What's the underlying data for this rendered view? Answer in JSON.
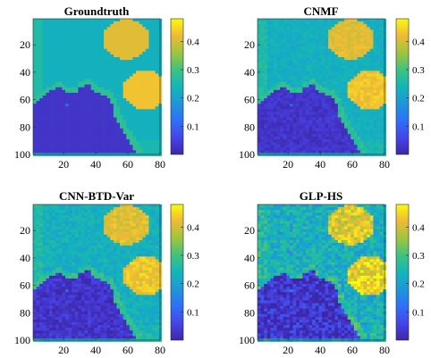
{
  "figure": {
    "panels": [
      {
        "title": "Groundtruth"
      },
      {
        "title": "CNMF"
      },
      {
        "title": "CNN-BTD-Var"
      },
      {
        "title": "GLP-HS"
      }
    ]
  },
  "chart_data": [
    {
      "type": "heatmap",
      "title": "Groundtruth",
      "xlim": [
        1,
        80
      ],
      "ylim": [
        1,
        100
      ],
      "y_reversed": true,
      "xticks": [
        20,
        40,
        60,
        80
      ],
      "yticks": [
        20,
        40,
        60,
        80,
        100
      ],
      "colorbar": {
        "ticks": [
          0.1,
          0.2,
          0.3,
          0.4
        ],
        "range": [
          0,
          0.48
        ],
        "colormap": "parula"
      },
      "noise_level": 0.0
    },
    {
      "type": "heatmap",
      "title": "CNMF",
      "xlim": [
        1,
        80
      ],
      "ylim": [
        1,
        100
      ],
      "y_reversed": true,
      "xticks": [
        20,
        40,
        60,
        80
      ],
      "yticks": [
        20,
        40,
        60,
        80,
        100
      ],
      "colorbar": {
        "ticks": [
          0.1,
          0.2,
          0.3,
          0.4
        ],
        "range": [
          0,
          0.48
        ],
        "colormap": "parula"
      },
      "noise_level": 0.02
    },
    {
      "type": "heatmap",
      "title": "CNN-BTD-Var",
      "xlim": [
        1,
        80
      ],
      "ylim": [
        1,
        100
      ],
      "y_reversed": true,
      "xticks": [
        20,
        40,
        60,
        80
      ],
      "yticks": [
        20,
        40,
        60,
        80,
        100
      ],
      "colorbar": {
        "ticks": [
          0.1,
          0.2,
          0.3,
          0.4
        ],
        "range": [
          0,
          0.48
        ],
        "colormap": "parula"
      },
      "noise_level": 0.03
    },
    {
      "type": "heatmap",
      "title": "GLP-HS",
      "xlim": [
        1,
        80
      ],
      "ylim": [
        1,
        100
      ],
      "y_reversed": true,
      "xticks": [
        20,
        40,
        60,
        80
      ],
      "yticks": [
        20,
        40,
        60,
        80,
        100
      ],
      "colorbar": {
        "ticks": [
          0.1,
          0.2,
          0.3,
          0.4
        ],
        "range": [
          0,
          0.48
        ],
        "colormap": "parula"
      },
      "noise_level": 0.06
    }
  ]
}
